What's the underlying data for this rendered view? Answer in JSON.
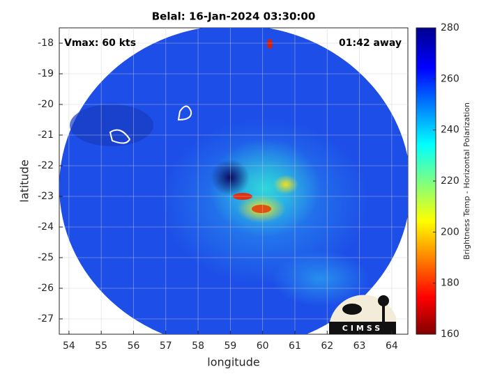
{
  "chart_data": {
    "type": "heatmap",
    "title": "Belal: 16-Jan-2024 03:30:00",
    "x_label": "longitude",
    "y_label": "latitude",
    "xlim": [
      53.7,
      64.5
    ],
    "ylim": [
      -27.5,
      -17.5
    ],
    "xticks": [
      54,
      55,
      56,
      57,
      58,
      59,
      60,
      61,
      62,
      63,
      64
    ],
    "yticks": [
      -27,
      -26,
      -25,
      -24,
      -23,
      -22,
      -21,
      -20,
      -19,
      -18
    ],
    "grid": true,
    "annotations": [
      "Vmax: 60 kts",
      "01:42 away"
    ],
    "colorbar": {
      "label": "Brightness Temp - Horizontal Polarization",
      "clim": [
        160,
        280
      ],
      "ticks": [
        160,
        180,
        200,
        220,
        240,
        260,
        280
      ]
    },
    "logo": "CIMSS"
  }
}
